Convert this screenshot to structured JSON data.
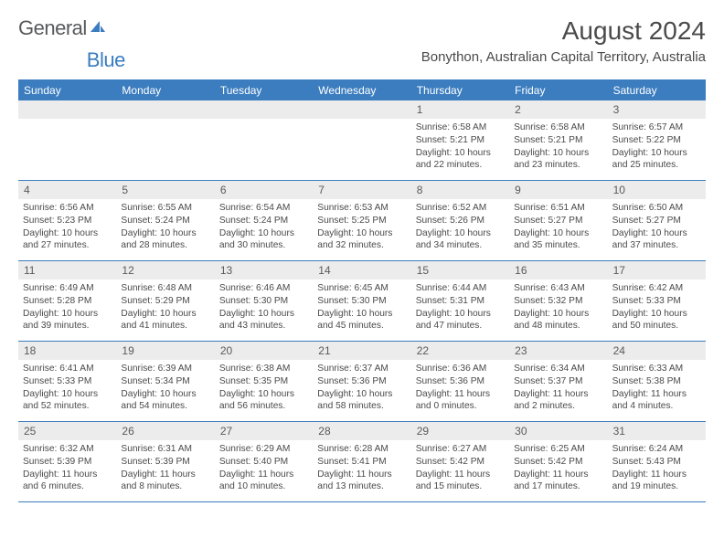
{
  "brand": {
    "part1": "General",
    "part2": "Blue"
  },
  "title": "August 2024",
  "location": "Bonython, Australian Capital Territory, Australia",
  "colors": {
    "header_bg": "#3b7dbf",
    "header_text": "#ffffff",
    "daynum_bg": "#ececec",
    "text": "#4a4a4a",
    "border": "#3b7dbf"
  },
  "day_headers": [
    "Sunday",
    "Monday",
    "Tuesday",
    "Wednesday",
    "Thursday",
    "Friday",
    "Saturday"
  ],
  "leading_blanks": 4,
  "days": [
    {
      "n": 1,
      "sunrise": "6:58 AM",
      "sunset": "5:21 PM",
      "daylight": "10 hours and 22 minutes."
    },
    {
      "n": 2,
      "sunrise": "6:58 AM",
      "sunset": "5:21 PM",
      "daylight": "10 hours and 23 minutes."
    },
    {
      "n": 3,
      "sunrise": "6:57 AM",
      "sunset": "5:22 PM",
      "daylight": "10 hours and 25 minutes."
    },
    {
      "n": 4,
      "sunrise": "6:56 AM",
      "sunset": "5:23 PM",
      "daylight": "10 hours and 27 minutes."
    },
    {
      "n": 5,
      "sunrise": "6:55 AM",
      "sunset": "5:24 PM",
      "daylight": "10 hours and 28 minutes."
    },
    {
      "n": 6,
      "sunrise": "6:54 AM",
      "sunset": "5:24 PM",
      "daylight": "10 hours and 30 minutes."
    },
    {
      "n": 7,
      "sunrise": "6:53 AM",
      "sunset": "5:25 PM",
      "daylight": "10 hours and 32 minutes."
    },
    {
      "n": 8,
      "sunrise": "6:52 AM",
      "sunset": "5:26 PM",
      "daylight": "10 hours and 34 minutes."
    },
    {
      "n": 9,
      "sunrise": "6:51 AM",
      "sunset": "5:27 PM",
      "daylight": "10 hours and 35 minutes."
    },
    {
      "n": 10,
      "sunrise": "6:50 AM",
      "sunset": "5:27 PM",
      "daylight": "10 hours and 37 minutes."
    },
    {
      "n": 11,
      "sunrise": "6:49 AM",
      "sunset": "5:28 PM",
      "daylight": "10 hours and 39 minutes."
    },
    {
      "n": 12,
      "sunrise": "6:48 AM",
      "sunset": "5:29 PM",
      "daylight": "10 hours and 41 minutes."
    },
    {
      "n": 13,
      "sunrise": "6:46 AM",
      "sunset": "5:30 PM",
      "daylight": "10 hours and 43 minutes."
    },
    {
      "n": 14,
      "sunrise": "6:45 AM",
      "sunset": "5:30 PM",
      "daylight": "10 hours and 45 minutes."
    },
    {
      "n": 15,
      "sunrise": "6:44 AM",
      "sunset": "5:31 PM",
      "daylight": "10 hours and 47 minutes."
    },
    {
      "n": 16,
      "sunrise": "6:43 AM",
      "sunset": "5:32 PM",
      "daylight": "10 hours and 48 minutes."
    },
    {
      "n": 17,
      "sunrise": "6:42 AM",
      "sunset": "5:33 PM",
      "daylight": "10 hours and 50 minutes."
    },
    {
      "n": 18,
      "sunrise": "6:41 AM",
      "sunset": "5:33 PM",
      "daylight": "10 hours and 52 minutes."
    },
    {
      "n": 19,
      "sunrise": "6:39 AM",
      "sunset": "5:34 PM",
      "daylight": "10 hours and 54 minutes."
    },
    {
      "n": 20,
      "sunrise": "6:38 AM",
      "sunset": "5:35 PM",
      "daylight": "10 hours and 56 minutes."
    },
    {
      "n": 21,
      "sunrise": "6:37 AM",
      "sunset": "5:36 PM",
      "daylight": "10 hours and 58 minutes."
    },
    {
      "n": 22,
      "sunrise": "6:36 AM",
      "sunset": "5:36 PM",
      "daylight": "11 hours and 0 minutes."
    },
    {
      "n": 23,
      "sunrise": "6:34 AM",
      "sunset": "5:37 PM",
      "daylight": "11 hours and 2 minutes."
    },
    {
      "n": 24,
      "sunrise": "6:33 AM",
      "sunset": "5:38 PM",
      "daylight": "11 hours and 4 minutes."
    },
    {
      "n": 25,
      "sunrise": "6:32 AM",
      "sunset": "5:39 PM",
      "daylight": "11 hours and 6 minutes."
    },
    {
      "n": 26,
      "sunrise": "6:31 AM",
      "sunset": "5:39 PM",
      "daylight": "11 hours and 8 minutes."
    },
    {
      "n": 27,
      "sunrise": "6:29 AM",
      "sunset": "5:40 PM",
      "daylight": "11 hours and 10 minutes."
    },
    {
      "n": 28,
      "sunrise": "6:28 AM",
      "sunset": "5:41 PM",
      "daylight": "11 hours and 13 minutes."
    },
    {
      "n": 29,
      "sunrise": "6:27 AM",
      "sunset": "5:42 PM",
      "daylight": "11 hours and 15 minutes."
    },
    {
      "n": 30,
      "sunrise": "6:25 AM",
      "sunset": "5:42 PM",
      "daylight": "11 hours and 17 minutes."
    },
    {
      "n": 31,
      "sunrise": "6:24 AM",
      "sunset": "5:43 PM",
      "daylight": "11 hours and 19 minutes."
    }
  ],
  "labels": {
    "sunrise": "Sunrise:",
    "sunset": "Sunset:",
    "daylight": "Daylight:"
  }
}
